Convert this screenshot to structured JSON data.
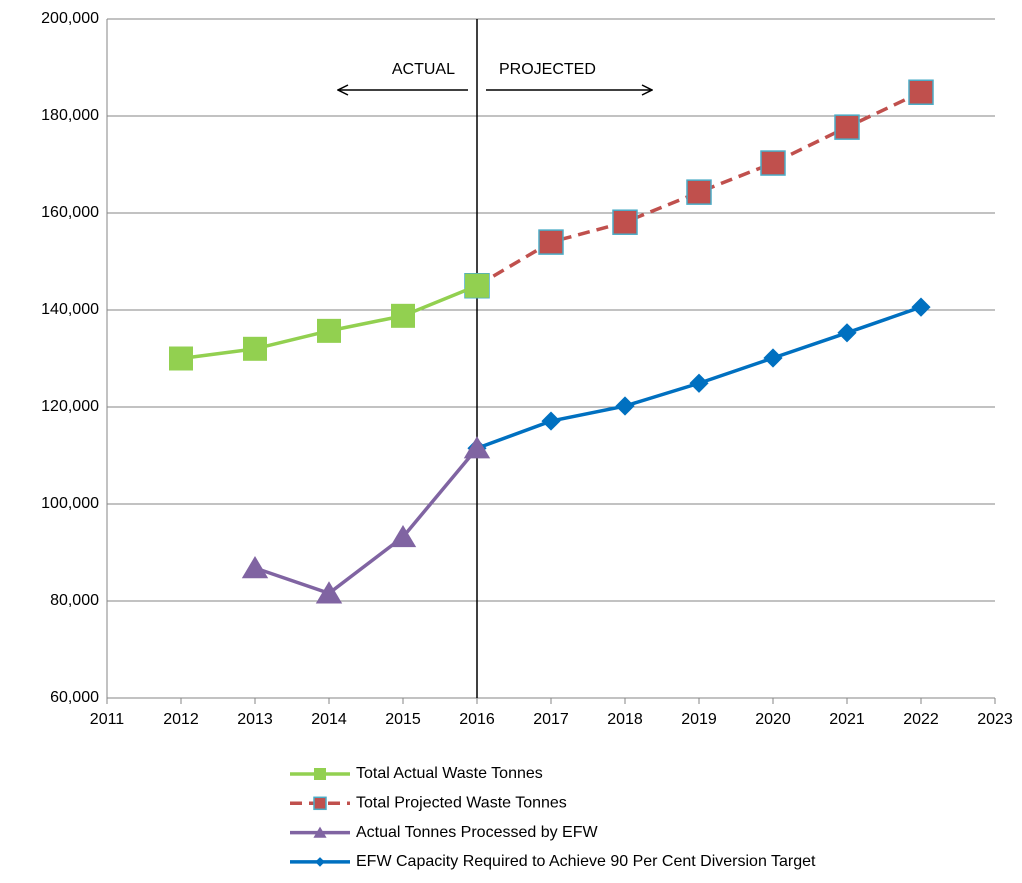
{
  "chart_data": {
    "type": "line",
    "x": [
      2012,
      2013,
      2014,
      2015,
      2016,
      2017,
      2018,
      2019,
      2020,
      2021,
      2022
    ],
    "series": [
      {
        "name": "Total Projected Waste Tonnes",
        "color": "#c0504d",
        "marker": "square",
        "dash": true,
        "values": [
          null,
          null,
          null,
          null,
          145000,
          154000,
          158100,
          164300,
          170300,
          177700,
          184900
        ]
      },
      {
        "name": "EFW Capacity Required to Achieve 90 Per Cent Diversion Target",
        "color": "#0070c0",
        "marker": "diamond",
        "dash": false,
        "values": [
          null,
          null,
          null,
          null,
          111500,
          117100,
          120200,
          124900,
          130100,
          135300,
          140600
        ]
      },
      {
        "name": "Total Actual Waste Tonnes",
        "color": "#92d050",
        "marker": "square",
        "dash": false,
        "values": [
          130000,
          132000,
          135700,
          138800,
          145000,
          null,
          null,
          null,
          null,
          null,
          null
        ]
      },
      {
        "name": "Actual Tonnes Processed by EFW",
        "color": "#8064a2",
        "marker": "triangle",
        "dash": false,
        "values": [
          null,
          86800,
          81600,
          93200,
          111500,
          null,
          null,
          null,
          null,
          null,
          null
        ]
      }
    ],
    "legend_order": [
      2,
      0,
      3,
      1
    ],
    "xlim": [
      2011,
      2023
    ],
    "xticks": [
      2011,
      2012,
      2013,
      2014,
      2015,
      2016,
      2017,
      2018,
      2019,
      2020,
      2021,
      2022,
      2023
    ],
    "ylim": [
      60000,
      200000
    ],
    "yticks": [
      {
        "value": 60000,
        "label": "60,000"
      },
      {
        "value": 80000,
        "label": "80,000"
      },
      {
        "value": 100000,
        "label": "100,000"
      },
      {
        "value": 120000,
        "label": "120,000"
      },
      {
        "value": 140000,
        "label": "140,000"
      },
      {
        "value": 160000,
        "label": "160,000"
      },
      {
        "value": 180000,
        "label": "180,000"
      },
      {
        "value": 200000,
        "label": "200,000"
      }
    ],
    "grid": true,
    "divider_x": 2016,
    "annotations": [
      "ACTUAL",
      "PROJECTED"
    ]
  }
}
